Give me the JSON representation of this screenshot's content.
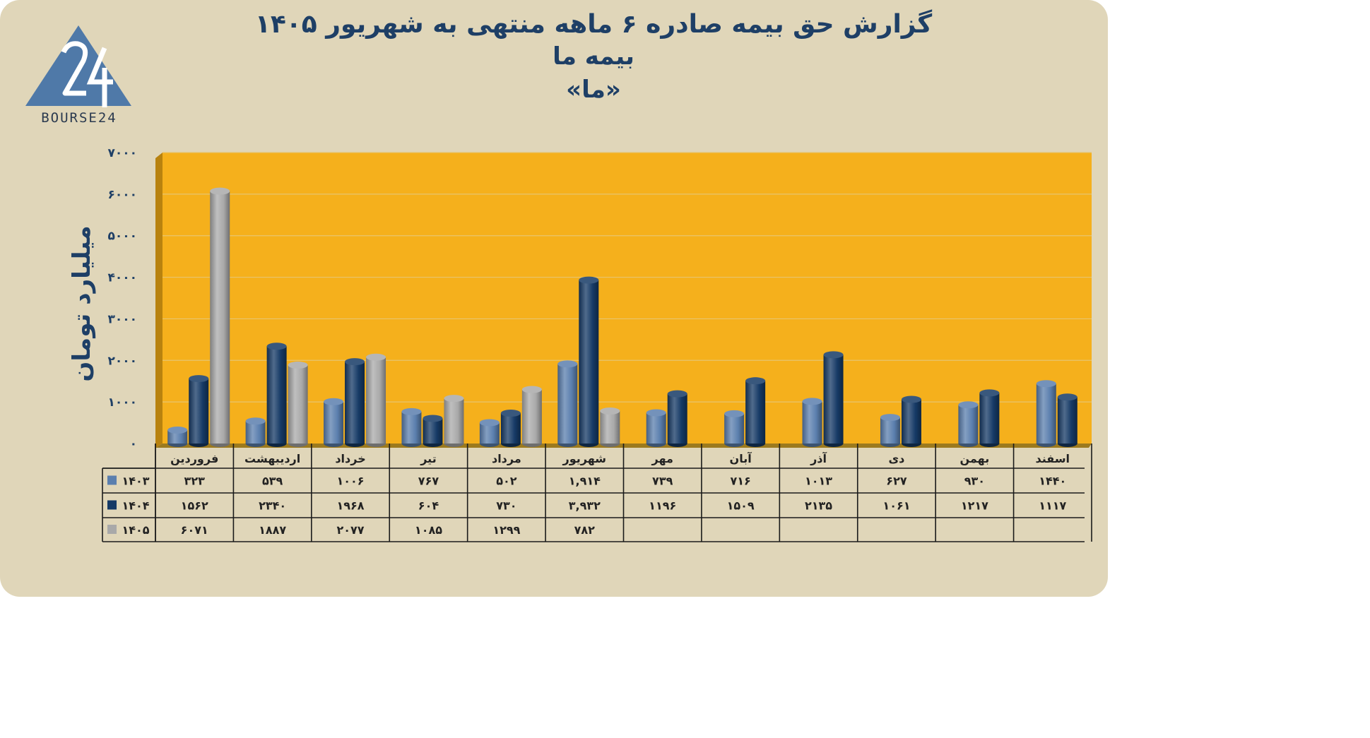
{
  "title": {
    "line1": "گزارش  حق بیمه صادره ۶ ماهه منتهی به شهریور ۱۴۰۵",
    "line2": "بیمه ما",
    "line3": "«ما»"
  },
  "logo": {
    "text": "BOURSE24",
    "icon": "bourse24-triangle-logo"
  },
  "colors": {
    "background": "#e0d6b9",
    "plot_area": "#f5b01c",
    "series_1403": "#5b7fae",
    "series_1404": "#163a66",
    "series_1405": "#a9a9a9",
    "text": "#1e3f66"
  },
  "chart_data": {
    "type": "bar",
    "ylabel": "میلیارد تومان",
    "ylim": [
      0,
      7000
    ],
    "yticks": [
      0,
      1000,
      2000,
      3000,
      4000,
      5000,
      6000,
      7000
    ],
    "ytick_labels": [
      "۰",
      "۱۰۰۰",
      "۲۰۰۰",
      "۳۰۰۰",
      "۴۰۰۰",
      "۵۰۰۰",
      "۶۰۰۰",
      "۷۰۰۰"
    ],
    "grid": true,
    "legend": "data-table",
    "categories": [
      "فروردین",
      "اردیبهشت",
      "خرداد",
      "تیر",
      "مرداد",
      "شهریور",
      "مهر",
      "آبان",
      "آذر",
      "دی",
      "بهمن",
      "اسفند"
    ],
    "series": [
      {
        "name": "۱۴۰۳",
        "color": "#5b7fae",
        "values": [
          323,
          539,
          1006,
          767,
          502,
          1914,
          739,
          716,
          1013,
          627,
          930,
          1440
        ],
        "labels": [
          "۳۲۳",
          "۵۳۹",
          "۱۰۰۶",
          "۷۶۷",
          "۵۰۲",
          "۱,۹۱۴",
          "۷۳۹",
          "۷۱۶",
          "۱۰۱۳",
          "۶۲۷",
          "۹۳۰",
          "۱۴۴۰"
        ]
      },
      {
        "name": "۱۴۰۴",
        "color": "#163a66",
        "values": [
          1562,
          2340,
          1968,
          604,
          730,
          3932,
          1196,
          1509,
          2135,
          1061,
          1217,
          1117
        ],
        "labels": [
          "۱۵۶۲",
          "۲۳۴۰",
          "۱۹۶۸",
          "۶۰۴",
          "۷۳۰",
          "۳,۹۳۲",
          "۱۱۹۶",
          "۱۵۰۹",
          "۲۱۳۵",
          "۱۰۶۱",
          "۱۲۱۷",
          "۱۱۱۷"
        ]
      },
      {
        "name": "۱۴۰۵",
        "color": "#a9a9a9",
        "values": [
          6071,
          1887,
          2077,
          1085,
          1299,
          782,
          null,
          null,
          null,
          null,
          null,
          null
        ],
        "labels": [
          "۶۰۷۱",
          "۱۸۸۷",
          "۲۰۷۷",
          "۱۰۸۵",
          "۱۲۹۹",
          "۷۸۲",
          "",
          "",
          "",
          "",
          "",
          ""
        ]
      }
    ]
  }
}
